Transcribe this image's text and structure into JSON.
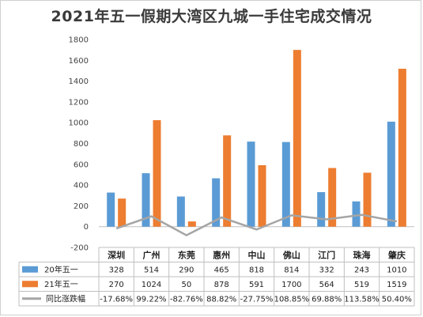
{
  "chart_data": {
    "type": "bar",
    "title": "2021年五一假期大湾区九城一手住宅成交情况",
    "categories": [
      "深圳",
      "广州",
      "东莞",
      "惠州",
      "中山",
      "佛山",
      "江门",
      "珠海",
      "肇庆"
    ],
    "series": [
      {
        "name": "20年五一",
        "values": [
          328,
          514,
          290,
          465,
          818,
          814,
          332,
          243,
          1010
        ],
        "color": "#5b9bd5"
      },
      {
        "name": "21年五一",
        "values": [
          270,
          1024,
          50,
          878,
          591,
          1700,
          564,
          519,
          1519
        ],
        "color": "#ed7d31"
      }
    ],
    "line_series": {
      "name": "同比涨跌幅",
      "labels": [
        "-17.68%",
        "99.22%",
        "-82.76%",
        "88.82%",
        "-27.75%",
        "108.85%",
        "69.88%",
        "113.58%",
        "50.40%"
      ],
      "values": [
        -17.68,
        99.22,
        -82.76,
        88.82,
        -27.75,
        108.85,
        69.88,
        113.58,
        50.4
      ],
      "color": "#a5a5a5"
    },
    "yticks": [
      -200,
      0,
      200,
      400,
      600,
      800,
      1000,
      1200,
      1400,
      1600,
      1800
    ],
    "ylim": [
      -200,
      1800
    ],
    "grid": false,
    "legend": "data-table-left"
  }
}
